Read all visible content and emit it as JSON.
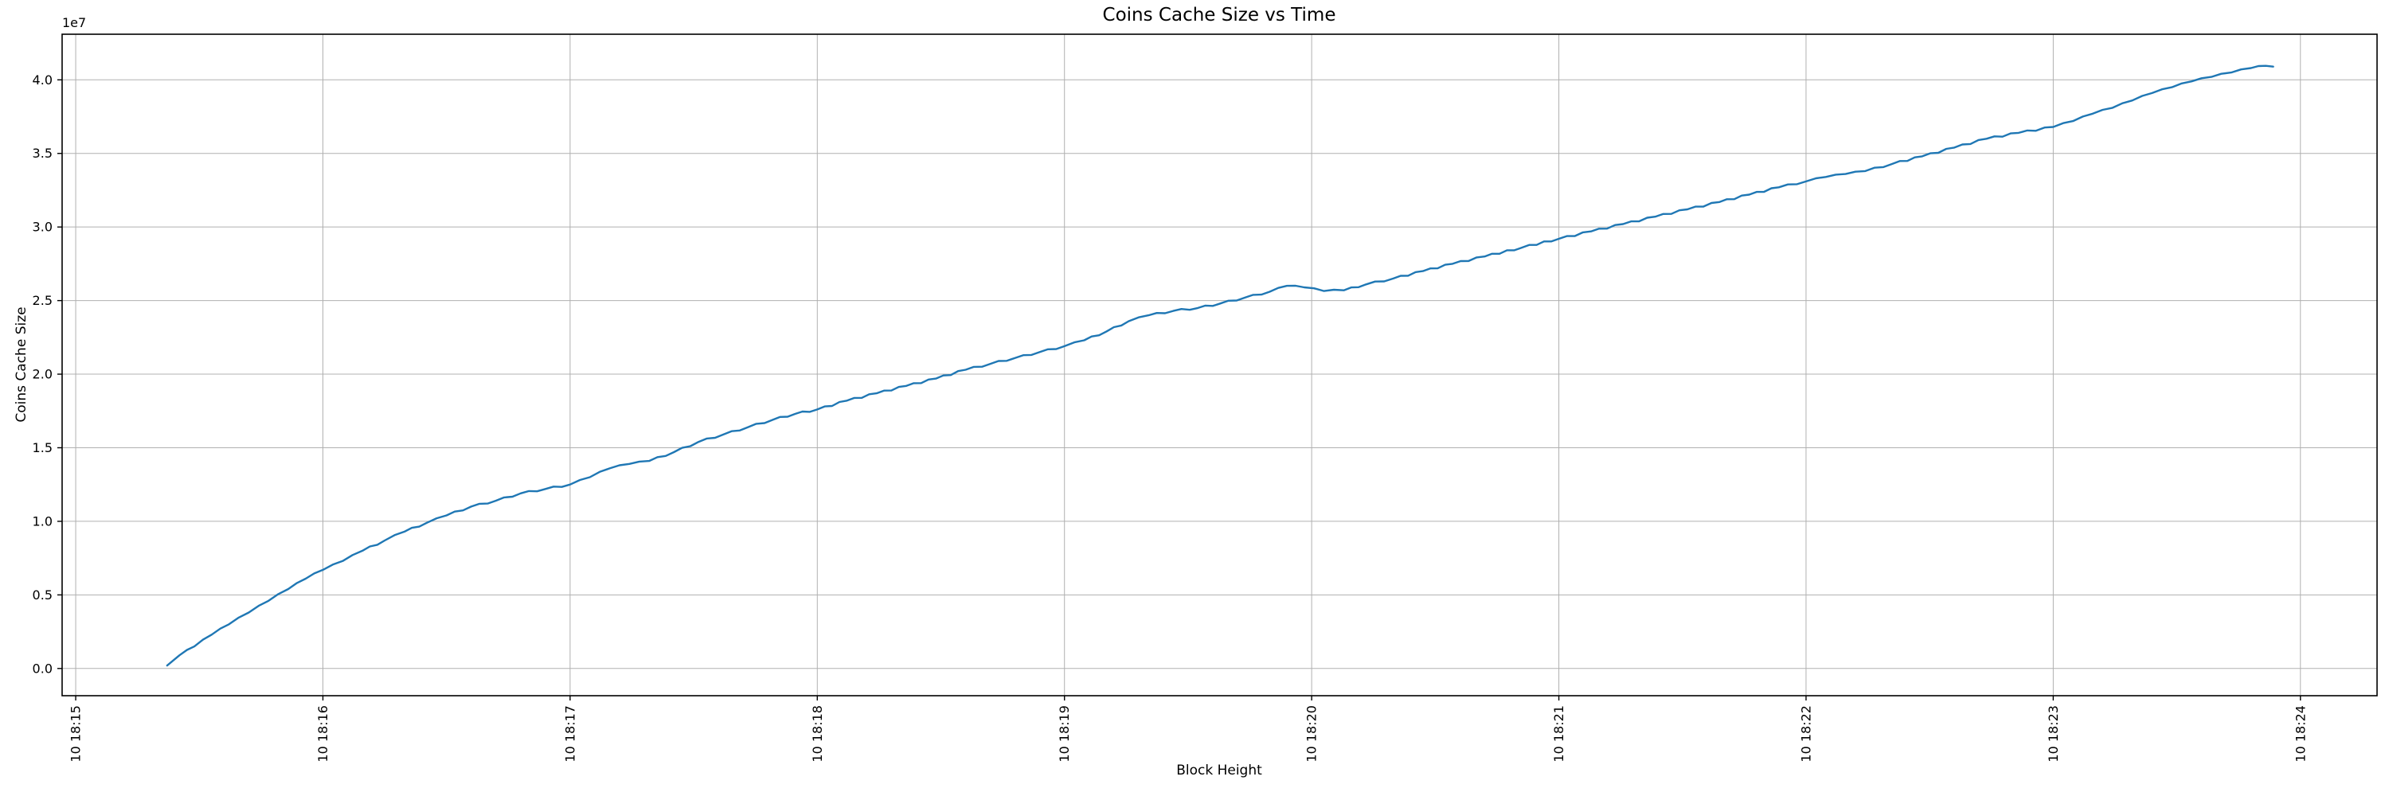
{
  "chart_data": {
    "type": "line",
    "title": "Coins Cache Size vs Time",
    "xlabel": "Block Height",
    "ylabel": "Coins Cache Size",
    "y_offset_label": "1e7",
    "y_unit_multiplier": 10000000,
    "grid": true,
    "legend": "none",
    "line_color": "#1f77b4",
    "grid_color": "#b0b0b0",
    "spine_color": "#000000",
    "x_tick_labels": [
      "10 18:15",
      "10 18:16",
      "10 18:17",
      "10 18:18",
      "10 18:19",
      "10 18:20",
      "10 18:21",
      "10 18:22",
      "10 18:23",
      "10 18:24"
    ],
    "x_ticks_minutes": [
      0,
      1,
      2,
      3,
      4,
      5,
      6,
      7,
      8,
      9
    ],
    "y_tick_labels": [
      "0.0",
      "0.5",
      "1.0",
      "1.5",
      "2.0",
      "2.5",
      "3.0",
      "3.5",
      "4.0"
    ],
    "y_ticks": [
      0,
      0.5,
      1,
      1.5,
      2,
      2.5,
      3,
      3.5,
      4
    ],
    "x_domain_minutes": [
      -0.055,
      9.31
    ],
    "y_domain": [
      -0.185,
      4.31
    ],
    "series": [
      {
        "name": "coins-cache-size",
        "points_format": "[minutes_after_18:15, value_in_1e7]",
        "points": [
          [
            0.37,
            0.02
          ],
          [
            0.42,
            0.09
          ],
          [
            0.48,
            0.15
          ],
          [
            0.55,
            0.23
          ],
          [
            0.62,
            0.3
          ],
          [
            0.7,
            0.38
          ],
          [
            0.78,
            0.46
          ],
          [
            0.86,
            0.54
          ],
          [
            0.93,
            0.61
          ],
          [
            1.0,
            0.67
          ],
          [
            1.08,
            0.73
          ],
          [
            1.16,
            0.8
          ],
          [
            1.25,
            0.87
          ],
          [
            1.33,
            0.93
          ],
          [
            1.42,
            0.99
          ],
          [
            1.5,
            1.04
          ],
          [
            1.6,
            1.1
          ],
          [
            1.7,
            1.14
          ],
          [
            1.8,
            1.19
          ],
          [
            1.9,
            1.22
          ],
          [
            2.0,
            1.25
          ],
          [
            2.08,
            1.3
          ],
          [
            2.16,
            1.36
          ],
          [
            2.24,
            1.39
          ],
          [
            2.32,
            1.41
          ],
          [
            2.42,
            1.47
          ],
          [
            2.52,
            1.54
          ],
          [
            2.62,
            1.59
          ],
          [
            2.72,
            1.64
          ],
          [
            2.82,
            1.69
          ],
          [
            2.91,
            1.73
          ],
          [
            3.0,
            1.76
          ],
          [
            3.12,
            1.82
          ],
          [
            3.24,
            1.87
          ],
          [
            3.36,
            1.92
          ],
          [
            3.48,
            1.97
          ],
          [
            3.6,
            2.03
          ],
          [
            3.7,
            2.07
          ],
          [
            3.8,
            2.11
          ],
          [
            3.9,
            2.15
          ],
          [
            4.0,
            2.19
          ],
          [
            4.08,
            2.23
          ],
          [
            4.17,
            2.29
          ],
          [
            4.26,
            2.36
          ],
          [
            4.34,
            2.4
          ],
          [
            4.44,
            2.43
          ],
          [
            4.54,
            2.45
          ],
          [
            4.63,
            2.48
          ],
          [
            4.73,
            2.52
          ],
          [
            4.83,
            2.56
          ],
          [
            4.9,
            2.6
          ],
          [
            4.97,
            2.59
          ],
          [
            5.05,
            2.565
          ],
          [
            5.13,
            2.57
          ],
          [
            5.22,
            2.61
          ],
          [
            5.33,
            2.65
          ],
          [
            5.45,
            2.7
          ],
          [
            5.57,
            2.75
          ],
          [
            5.7,
            2.8
          ],
          [
            5.85,
            2.86
          ],
          [
            6.0,
            2.92
          ],
          [
            6.13,
            2.97
          ],
          [
            6.26,
            3.02
          ],
          [
            6.39,
            3.07
          ],
          [
            6.52,
            3.12
          ],
          [
            6.65,
            3.17
          ],
          [
            6.77,
            3.22
          ],
          [
            6.89,
            3.27
          ],
          [
            7.0,
            3.31
          ],
          [
            7.08,
            3.34
          ],
          [
            7.16,
            3.36
          ],
          [
            7.24,
            3.38
          ],
          [
            7.35,
            3.43
          ],
          [
            7.47,
            3.48
          ],
          [
            7.6,
            3.54
          ],
          [
            7.73,
            3.6
          ],
          [
            7.86,
            3.64
          ],
          [
            8.0,
            3.68
          ],
          [
            8.08,
            3.72
          ],
          [
            8.16,
            3.77
          ],
          [
            8.24,
            3.81
          ],
          [
            8.32,
            3.86
          ],
          [
            8.4,
            3.91
          ],
          [
            8.48,
            3.95
          ],
          [
            8.56,
            3.99
          ],
          [
            8.64,
            4.02
          ],
          [
            8.72,
            4.05
          ],
          [
            8.8,
            4.08
          ],
          [
            8.86,
            4.095
          ],
          [
            8.89,
            4.09
          ]
        ]
      }
    ]
  }
}
